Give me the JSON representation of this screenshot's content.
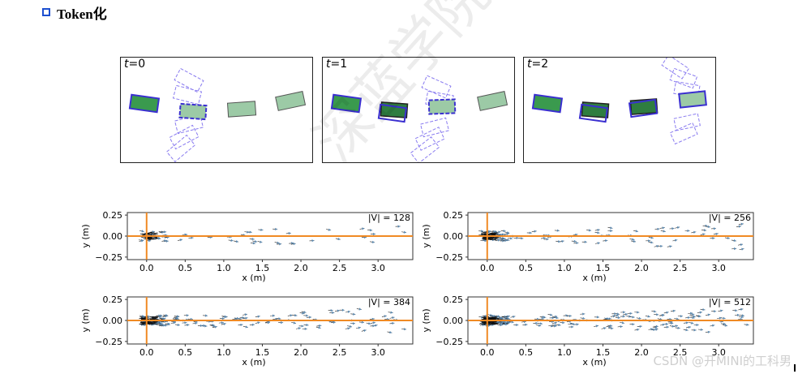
{
  "heading": {
    "text": "Token化"
  },
  "panels": [
    {
      "label_var": "t",
      "label_eq": "=0"
    },
    {
      "label_var": "t",
      "label_eq": "=1"
    },
    {
      "label_var": "t",
      "label_eq": "=2"
    }
  ],
  "watermark": {
    "text": "深蓝学院"
  },
  "footer": {
    "credit": "CSDN @开MINI的工科男"
  },
  "colors": {
    "agent_fill": "#3a9a4e",
    "agent_light": "#9ccaa6",
    "agent_stroke": "#3a2fd0",
    "candidate_stroke": "#8a7cf0",
    "axis_line": "#f08a24",
    "arrow": "#5b89b0"
  },
  "chart_data": [
    {
      "type": "scatter",
      "annotation": "|V| = 128",
      "xlabel": "x (m)",
      "ylabel": "y (m)",
      "xlim": [
        -0.25,
        3.45
      ],
      "ylim": [
        -0.28,
        0.28
      ],
      "xticks": [
        "0.0",
        "0.5",
        "1.0",
        "1.5",
        "2.0",
        "2.5",
        "3.0"
      ],
      "yticks": [
        "0.25",
        "0.00",
        "−0.25"
      ],
      "vocab_size": 128
    },
    {
      "type": "scatter",
      "annotation": "|V| = 256",
      "xlabel": "x (m)",
      "ylabel": "y (m)",
      "xlim": [
        -0.25,
        3.45
      ],
      "ylim": [
        -0.28,
        0.28
      ],
      "xticks": [
        "0.0",
        "0.5",
        "1.0",
        "1.5",
        "2.0",
        "2.5",
        "3.0"
      ],
      "yticks": [
        "0.25",
        "0.00",
        "−0.25"
      ],
      "vocab_size": 256
    },
    {
      "type": "scatter",
      "annotation": "|V| = 384",
      "xlabel": "x (m)",
      "ylabel": "y (m)",
      "xlim": [
        -0.25,
        3.45
      ],
      "ylim": [
        -0.28,
        0.28
      ],
      "xticks": [
        "0.0",
        "0.5",
        "1.0",
        "1.5",
        "2.0",
        "2.5",
        "3.0"
      ],
      "yticks": [
        "0.25",
        "0.00",
        "−0.25"
      ],
      "vocab_size": 384
    },
    {
      "type": "scatter",
      "annotation": "|V| = 512",
      "xlabel": "x (m)",
      "ylabel": "y (m)",
      "xlim": [
        -0.25,
        3.45
      ],
      "ylim": [
        -0.28,
        0.28
      ],
      "xticks": [
        "0.0",
        "0.5",
        "1.0",
        "1.5",
        "2.0",
        "2.5",
        "3.0"
      ],
      "yticks": [
        "0.25",
        "0.00",
        "−0.25"
      ],
      "vocab_size": 512
    }
  ]
}
